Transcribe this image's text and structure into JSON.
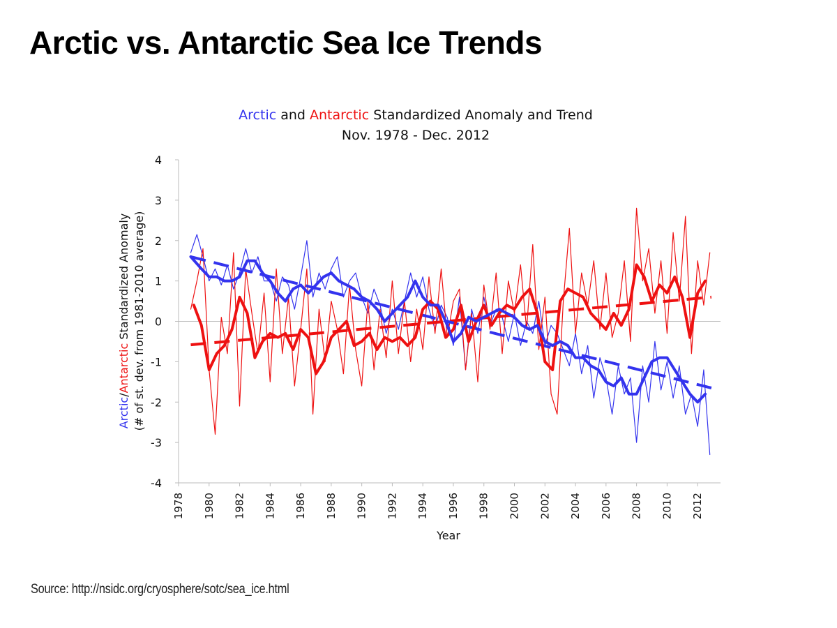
{
  "slide": {
    "title": "Arctic vs. Antarctic Sea Ice Trends",
    "source": "Source: http://nsidc.org/cryosphere/sotc/sea_ice.html"
  },
  "chart_data": {
    "type": "line",
    "title_parts": {
      "arctic": "Arctic",
      "and": " and ",
      "antarctic": "Antarctic",
      "rest": " Standardized Anomaly and Trend"
    },
    "subtitle": "Nov. 1978 - Dec. 2012",
    "xlabel": "Year",
    "ylabel_parts": {
      "arctic": "Arctic",
      "slash": "/",
      "antarctic": "Antarctic",
      "rest": " Standardized Anomaly"
    },
    "ylabel_line2": "(# of st. dev. from 1981-2010 average)",
    "xlim": [
      1978,
      2013.5
    ],
    "ylim": [
      -4,
      4
    ],
    "x_ticks": [
      1978,
      1980,
      1982,
      1984,
      1986,
      1988,
      1990,
      1992,
      1994,
      1996,
      1998,
      2000,
      2002,
      2004,
      2006,
      2008,
      2010,
      2012
    ],
    "y_ticks": [
      -4,
      -3,
      -2,
      -1,
      0,
      1,
      2,
      3,
      4
    ],
    "grid": false,
    "colors": {
      "arctic": "#3333ee",
      "antarctic": "#ee1111"
    },
    "series": [
      {
        "key": "arctic_monthly",
        "style": "thin",
        "x": [
          1978.8,
          1979.2,
          1979.6,
          1980.0,
          1980.4,
          1980.8,
          1981.2,
          1981.6,
          1982.0,
          1982.4,
          1982.8,
          1983.2,
          1983.6,
          1984.0,
          1984.4,
          1984.8,
          1985.2,
          1985.6,
          1986.0,
          1986.4,
          1986.8,
          1987.2,
          1987.6,
          1988.0,
          1988.4,
          1988.8,
          1989.2,
          1989.6,
          1990.0,
          1990.4,
          1990.8,
          1991.2,
          1991.6,
          1992.0,
          1992.4,
          1992.8,
          1993.2,
          1993.6,
          1994.0,
          1994.4,
          1994.8,
          1995.2,
          1995.6,
          1996.0,
          1996.4,
          1996.8,
          1997.2,
          1997.6,
          1998.0,
          1998.4,
          1998.8,
          1999.2,
          1999.6,
          2000.0,
          2000.4,
          2000.8,
          2001.2,
          2001.6,
          2002.0,
          2002.4,
          2002.8,
          2003.2,
          2003.6,
          2004.0,
          2004.4,
          2004.8,
          2005.2,
          2005.6,
          2006.0,
          2006.4,
          2006.8,
          2007.2,
          2007.6,
          2008.0,
          2008.4,
          2008.8,
          2009.2,
          2009.6,
          2010.0,
          2010.4,
          2010.8,
          2011.2,
          2011.6,
          2012.0,
          2012.4,
          2012.8
        ],
        "y": [
          1.7,
          2.15,
          1.6,
          1.0,
          1.3,
          0.9,
          1.4,
          0.8,
          1.2,
          1.8,
          1.2,
          1.6,
          1.0,
          1.0,
          0.5,
          1.1,
          0.9,
          0.3,
          1.1,
          2.0,
          0.6,
          1.2,
          0.8,
          1.3,
          1.6,
          0.6,
          1.0,
          1.2,
          0.6,
          0.2,
          0.8,
          0.4,
          -0.3,
          0.3,
          -0.2,
          0.5,
          1.2,
          0.6,
          1.1,
          0.3,
          -0.2,
          0.4,
          0.1,
          -0.6,
          0.6,
          -1.2,
          0.3,
          -0.3,
          0.6,
          -0.1,
          0.3,
          0.1,
          -0.5,
          0.2,
          -0.6,
          0.0,
          -0.3,
          0.5,
          -0.6,
          -0.1,
          -0.3,
          -0.7,
          -1.1,
          -0.3,
          -1.3,
          -0.6,
          -1.9,
          -0.9,
          -1.4,
          -2.3,
          -1.1,
          -1.8,
          -1.4,
          -3.0,
          -1.1,
          -2.0,
          -0.5,
          -1.7,
          -1.0,
          -1.9,
          -1.1,
          -2.3,
          -1.8,
          -2.6,
          -1.2,
          -3.3
        ]
      },
      {
        "key": "antarctic_monthly",
        "style": "thin",
        "x": [
          1978.8,
          1979.2,
          1979.6,
          1980.0,
          1980.4,
          1980.8,
          1981.2,
          1981.6,
          1982.0,
          1982.4,
          1982.8,
          1983.2,
          1983.6,
          1984.0,
          1984.4,
          1984.8,
          1985.2,
          1985.6,
          1986.0,
          1986.4,
          1986.8,
          1987.2,
          1987.6,
          1988.0,
          1988.4,
          1988.8,
          1989.2,
          1989.6,
          1990.0,
          1990.4,
          1990.8,
          1991.2,
          1991.6,
          1992.0,
          1992.4,
          1992.8,
          1993.2,
          1993.6,
          1994.0,
          1994.4,
          1994.8,
          1995.2,
          1995.6,
          1996.0,
          1996.4,
          1996.8,
          1997.2,
          1997.6,
          1998.0,
          1998.4,
          1998.8,
          1999.2,
          1999.6,
          2000.0,
          2000.4,
          2000.8,
          2001.2,
          2001.6,
          2002.0,
          2002.4,
          2002.8,
          2003.2,
          2003.6,
          2004.0,
          2004.4,
          2004.8,
          2005.2,
          2005.6,
          2006.0,
          2006.4,
          2006.8,
          2007.2,
          2007.6,
          2008.0,
          2008.4,
          2008.8,
          2009.2,
          2009.6,
          2010.0,
          2010.4,
          2010.8,
          2011.2,
          2011.6,
          2012.0,
          2012.4,
          2012.8
        ],
        "y": [
          0.3,
          1.0,
          1.8,
          -1.2,
          -2.8,
          0.1,
          -0.8,
          1.7,
          -2.1,
          1.3,
          0.2,
          -0.8,
          0.7,
          -1.5,
          1.3,
          -0.8,
          0.6,
          -1.6,
          -0.2,
          1.3,
          -2.3,
          0.3,
          -1.0,
          0.5,
          -0.2,
          -1.3,
          0.9,
          -0.7,
          -1.6,
          0.5,
          -1.2,
          0.3,
          -0.9,
          1.0,
          -0.8,
          0.5,
          -1.0,
          0.3,
          -0.7,
          1.1,
          -0.3,
          1.3,
          -0.4,
          0.5,
          0.8,
          -1.2,
          0.2,
          -1.5,
          0.9,
          -0.2,
          1.2,
          -0.8,
          1.0,
          0.2,
          1.4,
          -0.2,
          1.9,
          -0.7,
          0.6,
          -1.8,
          -2.3,
          0.5,
          2.3,
          -0.3,
          1.2,
          0.4,
          1.5,
          -0.2,
          1.2,
          -0.4,
          0.2,
          1.5,
          -0.5,
          2.8,
          1.0,
          1.8,
          0.2,
          1.5,
          -0.3,
          2.2,
          0.5,
          2.6,
          -0.8,
          1.5,
          0.4,
          1.7
        ]
      },
      {
        "key": "arctic_running_mean",
        "style": "thick",
        "x": [
          1978.8,
          1979.5,
          1980.0,
          1980.5,
          1981.0,
          1981.5,
          1982.0,
          1982.5,
          1983.0,
          1983.5,
          1984.0,
          1984.5,
          1985.0,
          1985.5,
          1986.0,
          1986.5,
          1987.0,
          1987.5,
          1988.0,
          1988.5,
          1989.0,
          1989.5,
          1990.0,
          1990.5,
          1991.0,
          1991.5,
          1992.0,
          1992.5,
          1993.0,
          1993.5,
          1994.0,
          1994.5,
          1995.0,
          1995.5,
          1996.0,
          1996.5,
          1997.0,
          1997.5,
          1998.0,
          1998.5,
          1999.0,
          1999.5,
          2000.0,
          2000.5,
          2001.0,
          2001.5,
          2002.0,
          2002.5,
          2003.0,
          2003.5,
          2004.0,
          2004.5,
          2005.0,
          2005.5,
          2006.0,
          2006.5,
          2007.0,
          2007.5,
          2008.0,
          2008.5,
          2009.0,
          2009.5,
          2010.0,
          2010.5,
          2011.0,
          2011.5,
          2012.0,
          2012.5
        ],
        "y": [
          1.6,
          1.3,
          1.1,
          1.1,
          1.0,
          1.0,
          1.1,
          1.5,
          1.5,
          1.2,
          1.0,
          0.7,
          0.5,
          0.8,
          0.9,
          0.7,
          0.9,
          1.1,
          1.2,
          1.0,
          0.9,
          0.8,
          0.6,
          0.5,
          0.3,
          0.0,
          0.2,
          0.4,
          0.6,
          1.0,
          0.6,
          0.4,
          0.4,
          0.0,
          -0.5,
          -0.3,
          0.1,
          0.0,
          0.1,
          0.2,
          0.3,
          0.2,
          0.1,
          -0.1,
          -0.2,
          -0.1,
          -0.5,
          -0.6,
          -0.5,
          -0.6,
          -0.9,
          -0.9,
          -1.1,
          -1.2,
          -1.5,
          -1.6,
          -1.4,
          -1.8,
          -1.8,
          -1.4,
          -1.0,
          -0.9,
          -0.9,
          -1.2,
          -1.5,
          -1.8,
          -2.0,
          -1.8
        ]
      },
      {
        "key": "antarctic_running_mean",
        "style": "thick",
        "x": [
          1979.0,
          1979.5,
          1980.0,
          1980.5,
          1981.0,
          1981.5,
          1982.0,
          1982.5,
          1983.0,
          1983.5,
          1984.0,
          1984.5,
          1985.0,
          1985.5,
          1986.0,
          1986.5,
          1987.0,
          1987.5,
          1988.0,
          1988.5,
          1989.0,
          1989.5,
          1990.0,
          1990.5,
          1991.0,
          1991.5,
          1992.0,
          1992.5,
          1993.0,
          1993.5,
          1994.0,
          1994.5,
          1995.0,
          1995.5,
          1996.0,
          1996.5,
          1997.0,
          1997.5,
          1998.0,
          1998.5,
          1999.0,
          1999.5,
          2000.0,
          2000.5,
          2001.0,
          2001.5,
          2002.0,
          2002.5,
          2003.0,
          2003.5,
          2004.0,
          2004.5,
          2005.0,
          2005.5,
          2006.0,
          2006.5,
          2007.0,
          2007.5,
          2008.0,
          2008.5,
          2009.0,
          2009.5,
          2010.0,
          2010.5,
          2011.0,
          2011.5,
          2012.0,
          2012.5
        ],
        "y": [
          0.4,
          -0.1,
          -1.2,
          -0.8,
          -0.6,
          -0.2,
          0.6,
          0.2,
          -0.9,
          -0.5,
          -0.3,
          -0.4,
          -0.3,
          -0.7,
          -0.2,
          -0.4,
          -1.3,
          -1.0,
          -0.4,
          -0.2,
          0.0,
          -0.6,
          -0.5,
          -0.3,
          -0.7,
          -0.4,
          -0.5,
          -0.4,
          -0.6,
          -0.4,
          0.3,
          0.5,
          0.3,
          -0.4,
          -0.2,
          0.4,
          -0.5,
          0.0,
          0.4,
          -0.1,
          0.2,
          0.4,
          0.3,
          0.6,
          0.8,
          0.2,
          -1.0,
          -1.2,
          0.5,
          0.8,
          0.7,
          0.6,
          0.2,
          0.0,
          -0.2,
          0.2,
          -0.1,
          0.3,
          1.4,
          1.1,
          0.5,
          0.9,
          0.7,
          1.1,
          0.6,
          -0.4,
          0.7,
          1.0
        ]
      },
      {
        "key": "arctic_trend",
        "style": "dashed",
        "x": [
          1978.8,
          2012.9
        ],
        "y": [
          1.6,
          -1.65
        ]
      },
      {
        "key": "antarctic_trend",
        "style": "dashed",
        "x": [
          1978.8,
          2012.9
        ],
        "y": [
          -0.58,
          0.6
        ]
      }
    ]
  }
}
